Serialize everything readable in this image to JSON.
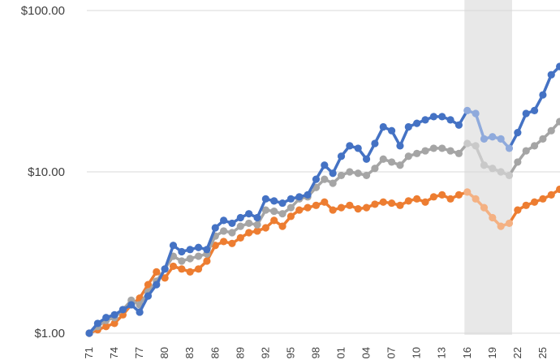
{
  "chart_data": {
    "type": "line",
    "title": "",
    "xlabel": "",
    "ylabel": "",
    "y_scale": "log",
    "ylim": [
      1,
      100
    ],
    "y_ticks": [
      "$1.00",
      "$10.00",
      "$100.00"
    ],
    "x_tick_labels": [
      "71",
      "74",
      "77",
      "80",
      "83",
      "86",
      "89",
      "92",
      "95",
      "98",
      "01",
      "04",
      "07",
      "10",
      "13",
      "16",
      "19",
      "22",
      "25"
    ],
    "grid": true,
    "legend": "none",
    "highlight_band": {
      "from": 2016,
      "to": 2021,
      "color": "#e8e8e8"
    },
    "x": [
      1971,
      1972,
      1973,
      1974,
      1975,
      1976,
      1977,
      1978,
      1979,
      1980,
      1981,
      1982,
      1983,
      1984,
      1985,
      1986,
      1987,
      1988,
      1989,
      1990,
      1991,
      1992,
      1993,
      1994,
      1995,
      1996,
      1997,
      1998,
      1999,
      2000,
      2001,
      2002,
      2003,
      2004,
      2005,
      2006,
      2007,
      2008,
      2009,
      2010,
      2011,
      2012,
      2013,
      2014,
      2015,
      2016,
      2017,
      2018,
      2019,
      2020,
      2021,
      2022,
      2023,
      2024,
      2025,
      2026,
      2027
    ],
    "series": [
      {
        "color": "#4472c4",
        "faded_color": "#8faadc",
        "values": [
          1.0,
          1.15,
          1.25,
          1.3,
          1.4,
          1.5,
          1.35,
          1.7,
          2.0,
          2.5,
          3.5,
          3.2,
          3.3,
          3.4,
          3.3,
          4.5,
          5.0,
          4.8,
          5.2,
          5.5,
          5.2,
          6.8,
          6.6,
          6.4,
          6.8,
          7.0,
          7.2,
          9.0,
          11.0,
          9.8,
          12.5,
          14.5,
          14.0,
          12.0,
          15.0,
          19.0,
          18.0,
          14.5,
          19.0,
          20.0,
          21.0,
          22.0,
          22.0,
          21.0,
          19.5,
          24.0,
          23.0,
          16.0,
          16.5,
          16.0,
          14.0,
          17.5,
          23.0,
          24.0,
          30.0,
          40.0,
          45.0
        ]
      },
      {
        "color": "#a5a5a5",
        "faded_color": "#c9c9c9",
        "values": [
          1.0,
          1.1,
          1.2,
          1.25,
          1.4,
          1.6,
          1.5,
          1.8,
          2.1,
          2.5,
          3.0,
          2.8,
          2.9,
          3.0,
          3.1,
          4.0,
          4.3,
          4.2,
          4.6,
          4.8,
          4.7,
          5.8,
          5.7,
          5.5,
          6.0,
          6.8,
          7.0,
          8.0,
          9.0,
          8.5,
          9.5,
          10.0,
          9.8,
          9.5,
          10.5,
          12.0,
          11.5,
          11.0,
          12.5,
          13.0,
          13.5,
          14.0,
          14.0,
          13.5,
          13.0,
          15.0,
          14.5,
          11.0,
          10.5,
          10.0,
          9.5,
          11.5,
          13.5,
          14.5,
          16.0,
          18.0,
          20.5
        ]
      },
      {
        "color": "#ed7d31",
        "faded_color": "#f4b183",
        "values": [
          1.0,
          1.05,
          1.1,
          1.15,
          1.3,
          1.5,
          1.65,
          2.0,
          2.4,
          2.2,
          2.6,
          2.5,
          2.4,
          2.5,
          2.8,
          3.5,
          3.7,
          3.6,
          3.9,
          4.2,
          4.3,
          4.5,
          5.0,
          4.6,
          5.3,
          5.8,
          6.0,
          6.2,
          6.5,
          5.8,
          6.0,
          6.2,
          5.9,
          6.0,
          6.3,
          6.5,
          6.4,
          6.2,
          6.6,
          6.8,
          6.5,
          7.0,
          7.2,
          6.8,
          7.2,
          7.5,
          6.8,
          6.0,
          5.2,
          4.6,
          4.8,
          5.8,
          6.2,
          6.5,
          6.8,
          7.2,
          7.8
        ]
      }
    ]
  }
}
